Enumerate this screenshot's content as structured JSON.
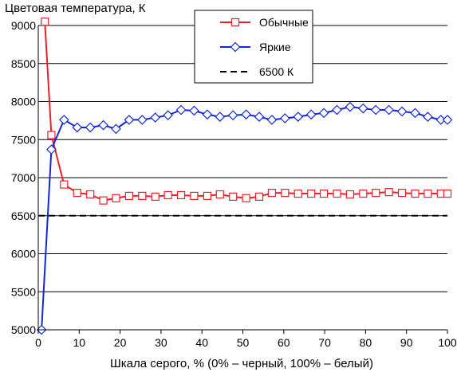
{
  "chart_data": {
    "type": "line",
    "title": "Цветовая температура, К",
    "xlabel": "Шкала серого, % (0% – черный, 100% – белый)",
    "ylabel": "",
    "xlim": [
      0,
      100
    ],
    "ylim": [
      5000,
      9000
    ],
    "x_ticks": [
      0,
      10,
      20,
      30,
      40,
      50,
      60,
      70,
      80,
      90,
      100
    ],
    "y_ticks": [
      5000,
      5500,
      6000,
      6500,
      7000,
      7500,
      8000,
      8500,
      9000
    ],
    "grid": "horizontal",
    "legend_position": "top-center",
    "series": [
      {
        "name": "Обычные",
        "color": "#e8202a",
        "marker": "square",
        "line_style": "solid",
        "x": [
          1.6,
          3.2,
          6.3,
          9.5,
          12.7,
          15.9,
          19.0,
          22.2,
          25.4,
          28.6,
          31.7,
          34.9,
          38.1,
          41.3,
          44.4,
          47.6,
          50.8,
          54.0,
          57.1,
          60.3,
          63.5,
          66.7,
          69.8,
          73.0,
          76.2,
          79.4,
          82.5,
          85.7,
          88.9,
          92.1,
          95.2,
          98.4,
          100.0
        ],
        "y": [
          9050,
          7560,
          6910,
          6800,
          6780,
          6700,
          6730,
          6760,
          6760,
          6750,
          6770,
          6770,
          6760,
          6760,
          6780,
          6750,
          6730,
          6750,
          6800,
          6800,
          6790,
          6790,
          6790,
          6790,
          6780,
          6790,
          6800,
          6810,
          6800,
          6790,
          6790,
          6790,
          6790
        ]
      },
      {
        "name": "Яркие",
        "color": "#1428d2",
        "marker": "diamond",
        "line_style": "solid",
        "x": [
          0.8,
          3.2,
          6.3,
          9.5,
          12.7,
          15.9,
          19.0,
          22.2,
          25.4,
          28.6,
          31.7,
          34.9,
          38.1,
          41.3,
          44.4,
          47.6,
          50.8,
          54.0,
          57.1,
          60.3,
          63.5,
          66.7,
          69.8,
          73.0,
          76.2,
          79.4,
          82.5,
          85.7,
          88.9,
          92.1,
          95.2,
          98.4,
          100.0
        ],
        "y": [
          5000,
          7370,
          7760,
          7660,
          7660,
          7690,
          7640,
          7760,
          7760,
          7790,
          7820,
          7890,
          7880,
          7830,
          7800,
          7820,
          7830,
          7800,
          7760,
          7780,
          7800,
          7830,
          7850,
          7890,
          7930,
          7910,
          7890,
          7890,
          7870,
          7850,
          7800,
          7760,
          7760
        ]
      },
      {
        "name": "6500 К",
        "color": "#000000",
        "marker": "none",
        "line_style": "dashed",
        "x": [
          0,
          100
        ],
        "y": [
          6500,
          6500
        ]
      }
    ]
  }
}
